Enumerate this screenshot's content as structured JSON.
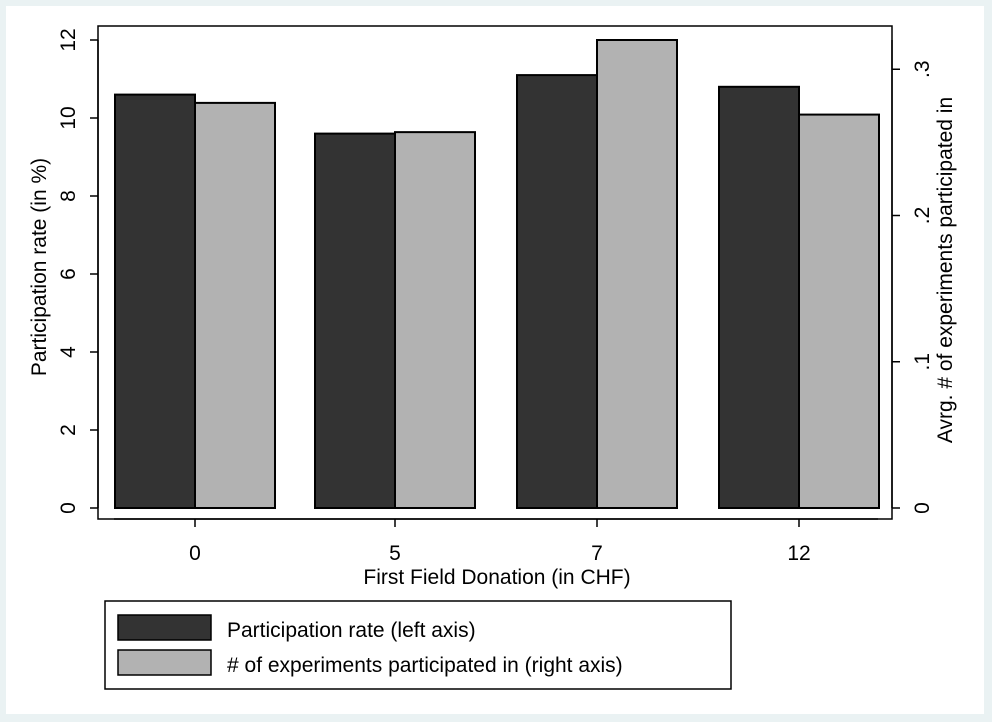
{
  "chart_data": {
    "type": "bar",
    "title": "",
    "xlabel": "First Field Donation (in CHF)",
    "ylabel_left": "Participation rate (in %)",
    "ylabel_right": "Avrg. # of experiments participated in",
    "categories": [
      "0",
      "5",
      "7",
      "12"
    ],
    "ylim_left": [
      0,
      12
    ],
    "ylim_right": [
      0,
      0.32
    ],
    "yticks_left": [
      0,
      2,
      4,
      6,
      8,
      10,
      12
    ],
    "yticks_left_labels": [
      "0",
      "2",
      "4",
      "6",
      "8",
      "10",
      "12"
    ],
    "yticks_right": [
      0,
      0.1,
      0.2,
      0.3
    ],
    "yticks_right_labels": [
      "0",
      ".1",
      ".2",
      ".3"
    ],
    "grid": false,
    "legend_position": "bottom",
    "series": [
      {
        "name": "Participation rate (left axis)",
        "axis": "left",
        "color": "#333333",
        "values": [
          10.6,
          9.6,
          11.1,
          10.8
        ]
      },
      {
        "name": "# of experiments participated in (right axis)",
        "axis": "right",
        "color": "#b2b2b2",
        "values": [
          0.277,
          0.257,
          0.32,
          0.269
        ]
      }
    ]
  }
}
